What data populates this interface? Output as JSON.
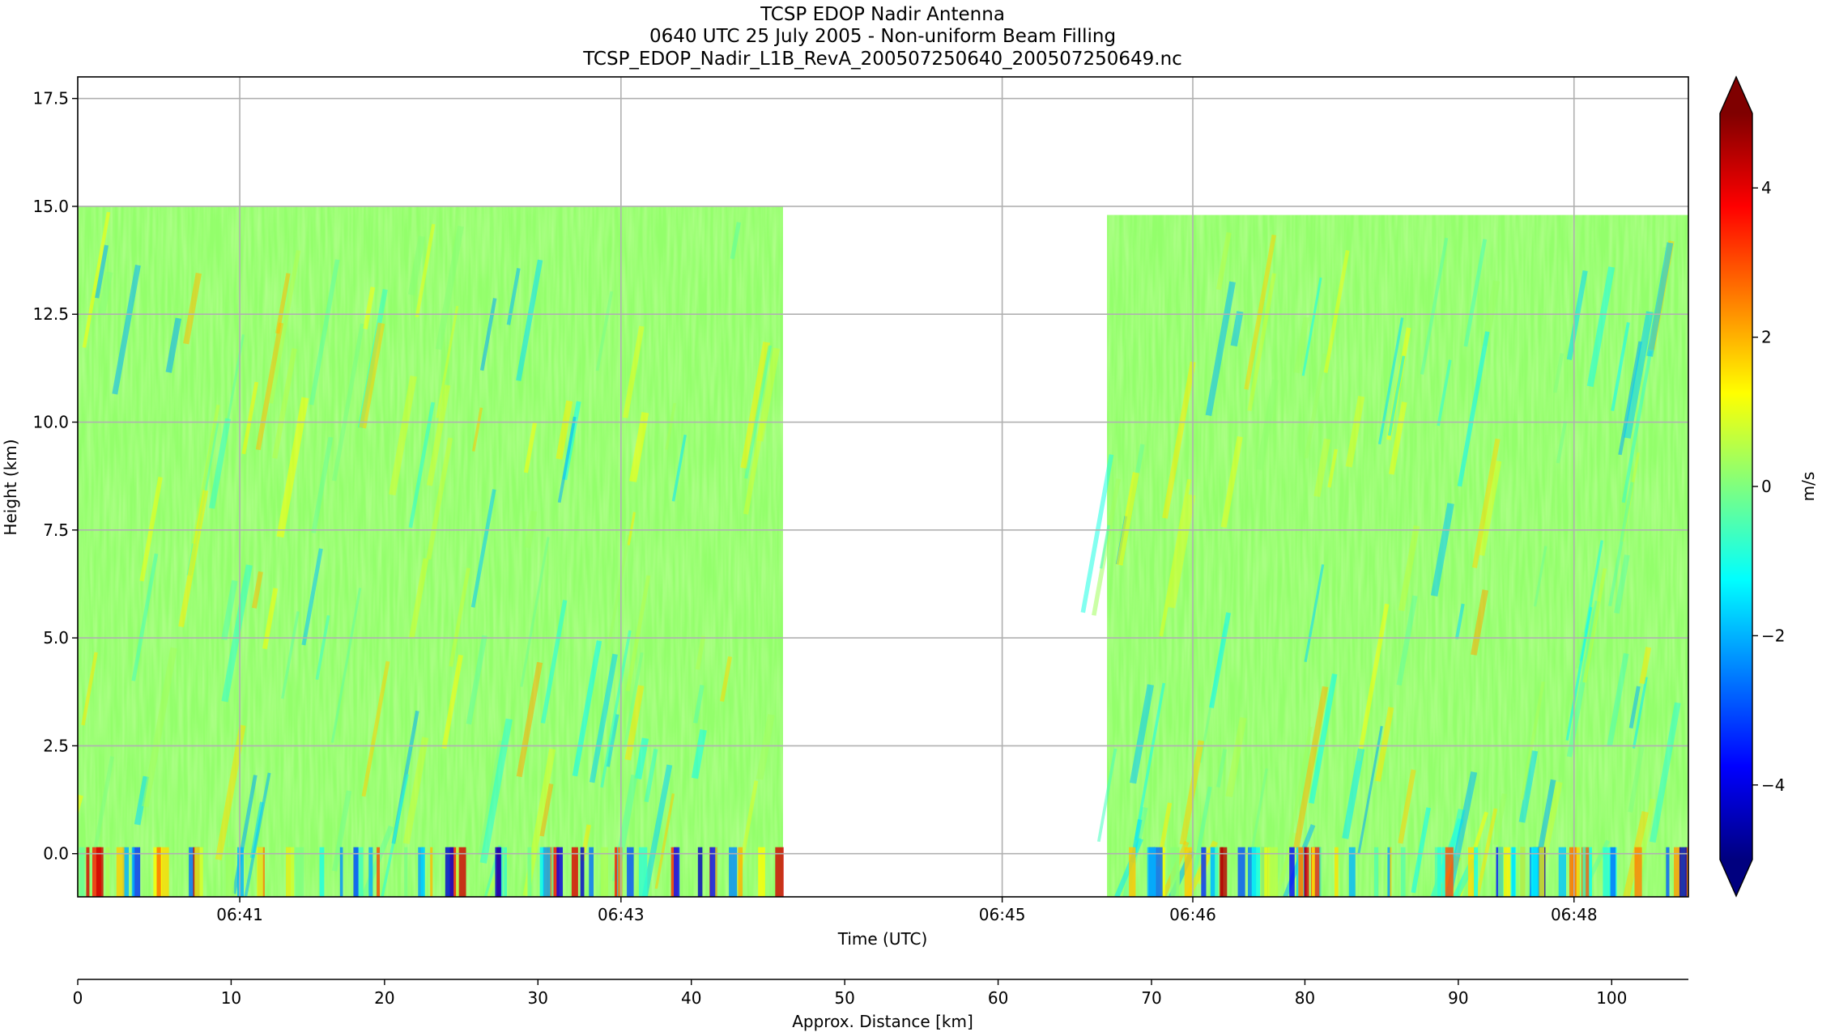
{
  "chart_data": {
    "type": "heatmap",
    "title_lines": [
      "TCSP EDOP Nadir Antenna",
      "0640 UTC 25 July 2005 - Non-uniform Beam Filling",
      "TCSP_EDOP_Nadir_L1B_RevA_200507250640_200507250649.nc"
    ],
    "xlabel": "Time (UTC)",
    "ylabel": "Height (km)",
    "colorbar_label": "m/s",
    "colormap": "jet",
    "colormap_stops": [
      "#00007f",
      "#0000ff",
      "#007fff",
      "#00ffff",
      "#7fff7f",
      "#ffff00",
      "#ff7f00",
      "#ff0000",
      "#7f0000"
    ],
    "clim": [
      -5,
      5
    ],
    "colorbar_extend": "both",
    "grid": true,
    "xlim_minutes": [
      40.15,
      48.6
    ],
    "ylim": [
      -1,
      18
    ],
    "x_ticks": [
      {
        "label": "06:41",
        "minutes": 41
      },
      {
        "label": "06:43",
        "minutes": 43
      },
      {
        "label": "06:45",
        "minutes": 45
      },
      {
        "label": "06:46",
        "minutes": 46
      },
      {
        "label": "06:48",
        "minutes": 48
      }
    ],
    "y_ticks": [
      {
        "label": "0.0",
        "value": 0.0
      },
      {
        "label": "2.5",
        "value": 2.5
      },
      {
        "label": "5.0",
        "value": 5.0
      },
      {
        "label": "7.5",
        "value": 7.5
      },
      {
        "label": "10.0",
        "value": 10.0
      },
      {
        "label": "12.5",
        "value": 12.5
      },
      {
        "label": "15.0",
        "value": 15.0
      },
      {
        "label": "17.5",
        "value": 17.5
      }
    ],
    "colorbar_ticks": [
      {
        "label": "4",
        "value": 4
      },
      {
        "label": "2",
        "value": 2
      },
      {
        "label": "0",
        "value": 0
      },
      {
        "label": "−2",
        "value": -2
      },
      {
        "label": "−4",
        "value": -4
      }
    ],
    "data_segments": [
      {
        "start_minutes": 40.15,
        "end_minutes": 43.85,
        "top_km": 15.0
      },
      {
        "start_minutes": 45.55,
        "end_minutes": 48.6,
        "top_km": 14.8
      }
    ],
    "secondary_axis": {
      "label": "Approx. Distance [km]",
      "xlim": [
        0,
        105
      ],
      "ticks": [
        {
          "label": "0",
          "value": 0
        },
        {
          "label": "10",
          "value": 10
        },
        {
          "label": "20",
          "value": 20
        },
        {
          "label": "30",
          "value": 30
        },
        {
          "label": "40",
          "value": 40
        },
        {
          "label": "50",
          "value": 50
        },
        {
          "label": "60",
          "value": 60
        },
        {
          "label": "70",
          "value": 70
        },
        {
          "label": "80",
          "value": 80
        },
        {
          "label": "90",
          "value": 90
        },
        {
          "label": "100",
          "value": 100
        }
      ]
    }
  }
}
